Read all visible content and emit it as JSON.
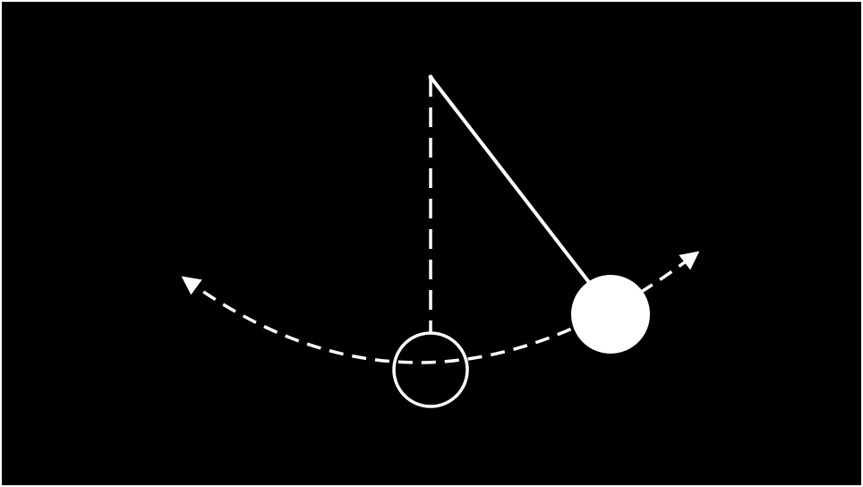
{
  "diagram": {
    "subject": "pendulum",
    "colors": {
      "background": "#000000",
      "frame": "#ffffff",
      "stroke": "#ffffff",
      "bob": "#ffffff"
    },
    "elements": {
      "pivot": "pivot-point",
      "rest_line_style": "dashed",
      "swing_path_style": "dashed",
      "swing_path_arrows": "both-ends",
      "rest_bob_fill": "none",
      "displaced_bob_fill": "solid"
    }
  }
}
